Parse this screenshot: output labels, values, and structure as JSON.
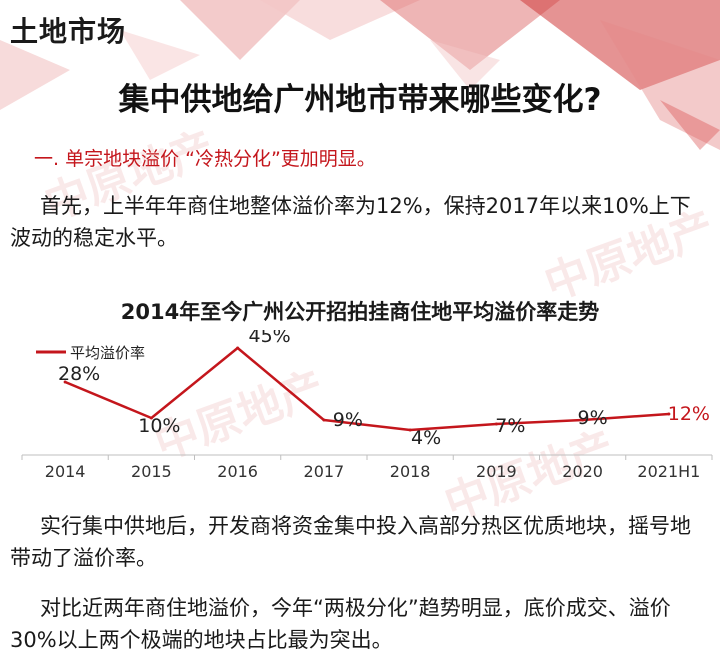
{
  "header": {
    "section_tag": "土地市场",
    "headline": "集中供地给广州地市带来哪些变化?",
    "subhead": "一. 单宗地块溢价 “冷热分化”更加明显。"
  },
  "paragraphs": [
    "首先，上半年年商住地整体溢价率为12%，保持2017年以来10%上下波动的稳定水平。",
    "实行集中供地后，开发商将资金集中投入高部分热区优质地块，摇号地带动了溢价率。",
    "对比近两年商住地溢价，今年“两极分化”趋势明显，底价成交、溢价30%以上两个极端的地块占比最为突出。"
  ],
  "watermark": "中原地产",
  "colors": {
    "accent": "#c4161c",
    "text": "#1a1a1a"
  },
  "chart_data": {
    "type": "line",
    "title": "2014年至今广州公开招拍挂商住地平均溢价率走势",
    "categories": [
      "2014",
      "2015",
      "2016",
      "2017",
      "2018",
      "2019",
      "2020",
      "2021H1"
    ],
    "series": [
      {
        "name": "平均溢价率",
        "values": [
          28,
          10,
          45,
          9,
          4,
          7,
          9,
          12
        ],
        "unit": "%",
        "color": "#c4161c"
      }
    ],
    "data_labels": [
      "28%",
      "10%",
      "45%",
      "9%",
      "4%",
      "7%",
      "9%",
      "12%"
    ],
    "legend": "top-left",
    "grid": false
  }
}
